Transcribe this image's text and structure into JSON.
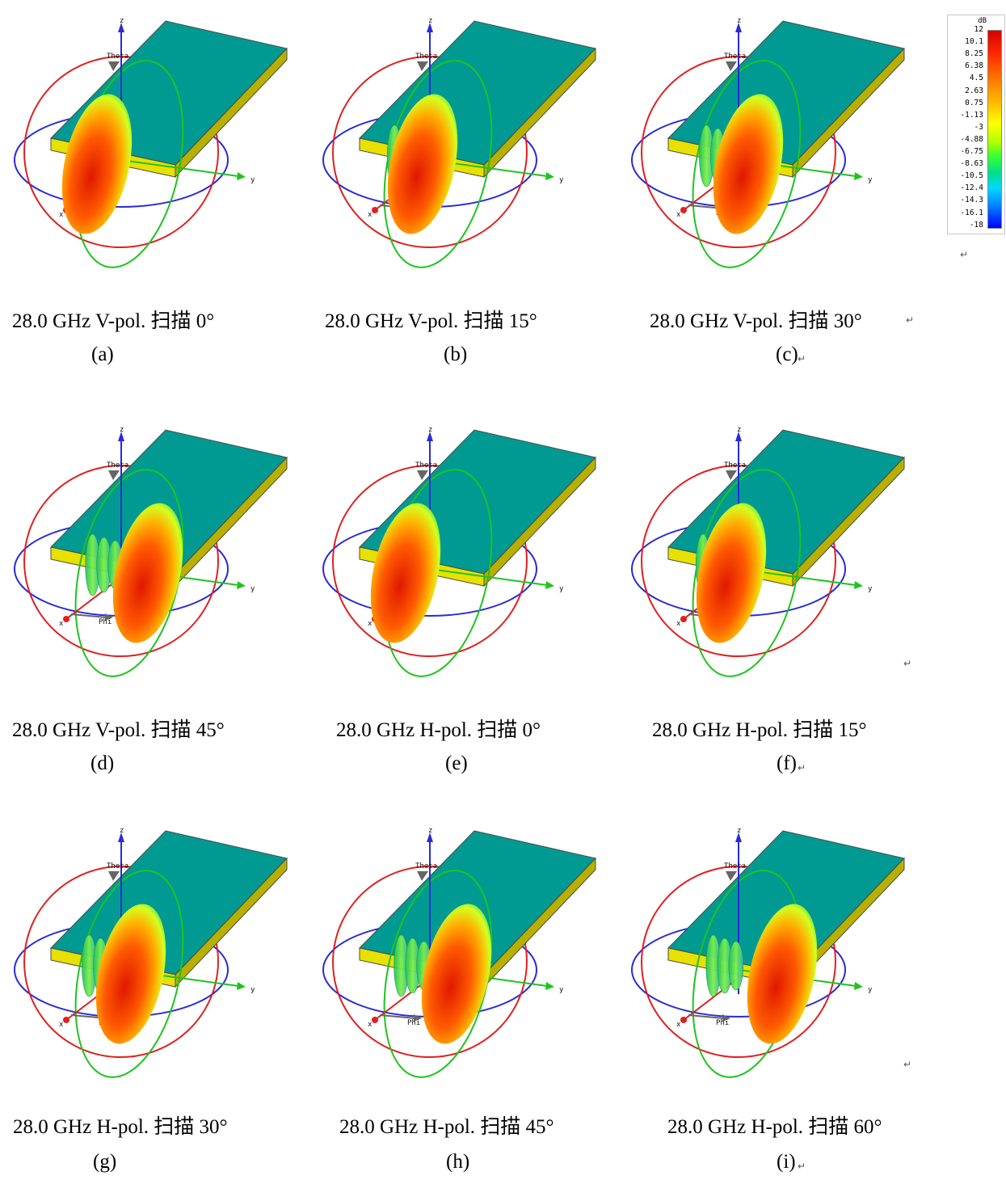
{
  "colorbar": {
    "unit": "dB",
    "ticks": [
      "12",
      "10.1",
      "8.25",
      "6.38",
      "4.5",
      "2.63",
      "0.75",
      "-1.13",
      "-3",
      "-4.88",
      "-6.75",
      "-8.63",
      "-10.5",
      "-12.4",
      "-14.3",
      "-16.1",
      "-18"
    ]
  },
  "axis_labels": {
    "z": "z",
    "y": "y",
    "x": "x",
    "theta": "Theta",
    "phi": "Phi"
  },
  "panels": [
    {
      "caption": "28.0 GHz V-pol.  扫描 0°",
      "label": "(a)",
      "scan_deg": 0
    },
    {
      "caption": "28.0 GHz V-pol.  扫描 15°",
      "label": "(b)",
      "scan_deg": 15
    },
    {
      "caption": "28.0 GHz V-pol.  扫描 30°",
      "label": "(c)",
      "scan_deg": 30
    },
    {
      "caption": "28.0 GHz V-pol.  扫描 45°",
      "label": "(d)",
      "scan_deg": 45
    },
    {
      "caption": "28.0 GHz H-pol.  扫描 0°",
      "label": "(e)",
      "scan_deg": 0
    },
    {
      "caption": "28.0 GHz H-pol.  扫描 15°",
      "label": "(f)",
      "scan_deg": 15
    },
    {
      "caption": "28.0 GHz H-pol.  扫描 30°",
      "label": "(g)",
      "scan_deg": 30
    },
    {
      "caption": "28.0 GHz H-pol.  扫描 45°",
      "label": "(h)",
      "scan_deg": 45
    },
    {
      "caption": "28.0 GHz H-pol.  扫描 60°",
      "label": "(i)",
      "scan_deg": 60
    }
  ]
}
